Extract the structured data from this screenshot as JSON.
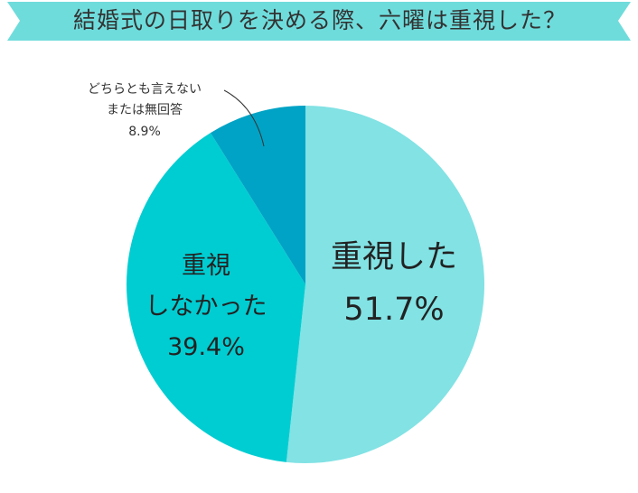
{
  "chart_data": {
    "type": "pie",
    "title": "結婚式の日取りを決める際、六曜は重視した？",
    "colors": {
      "banner": "#6fdcdc",
      "slices": [
        "#82e2e4",
        "#00cdd2",
        "#00a3c5"
      ]
    },
    "slices": [
      {
        "label_lines": [
          "重視した"
        ],
        "value": 51.7,
        "value_text": "51.7%"
      },
      {
        "label_lines": [
          "重視",
          "しなかった"
        ],
        "value": 39.4,
        "value_text": "39.4%"
      },
      {
        "label_lines": [
          "どちらとも言えない",
          "または無回答"
        ],
        "value": 8.9,
        "value_text": "8.9%"
      }
    ]
  }
}
